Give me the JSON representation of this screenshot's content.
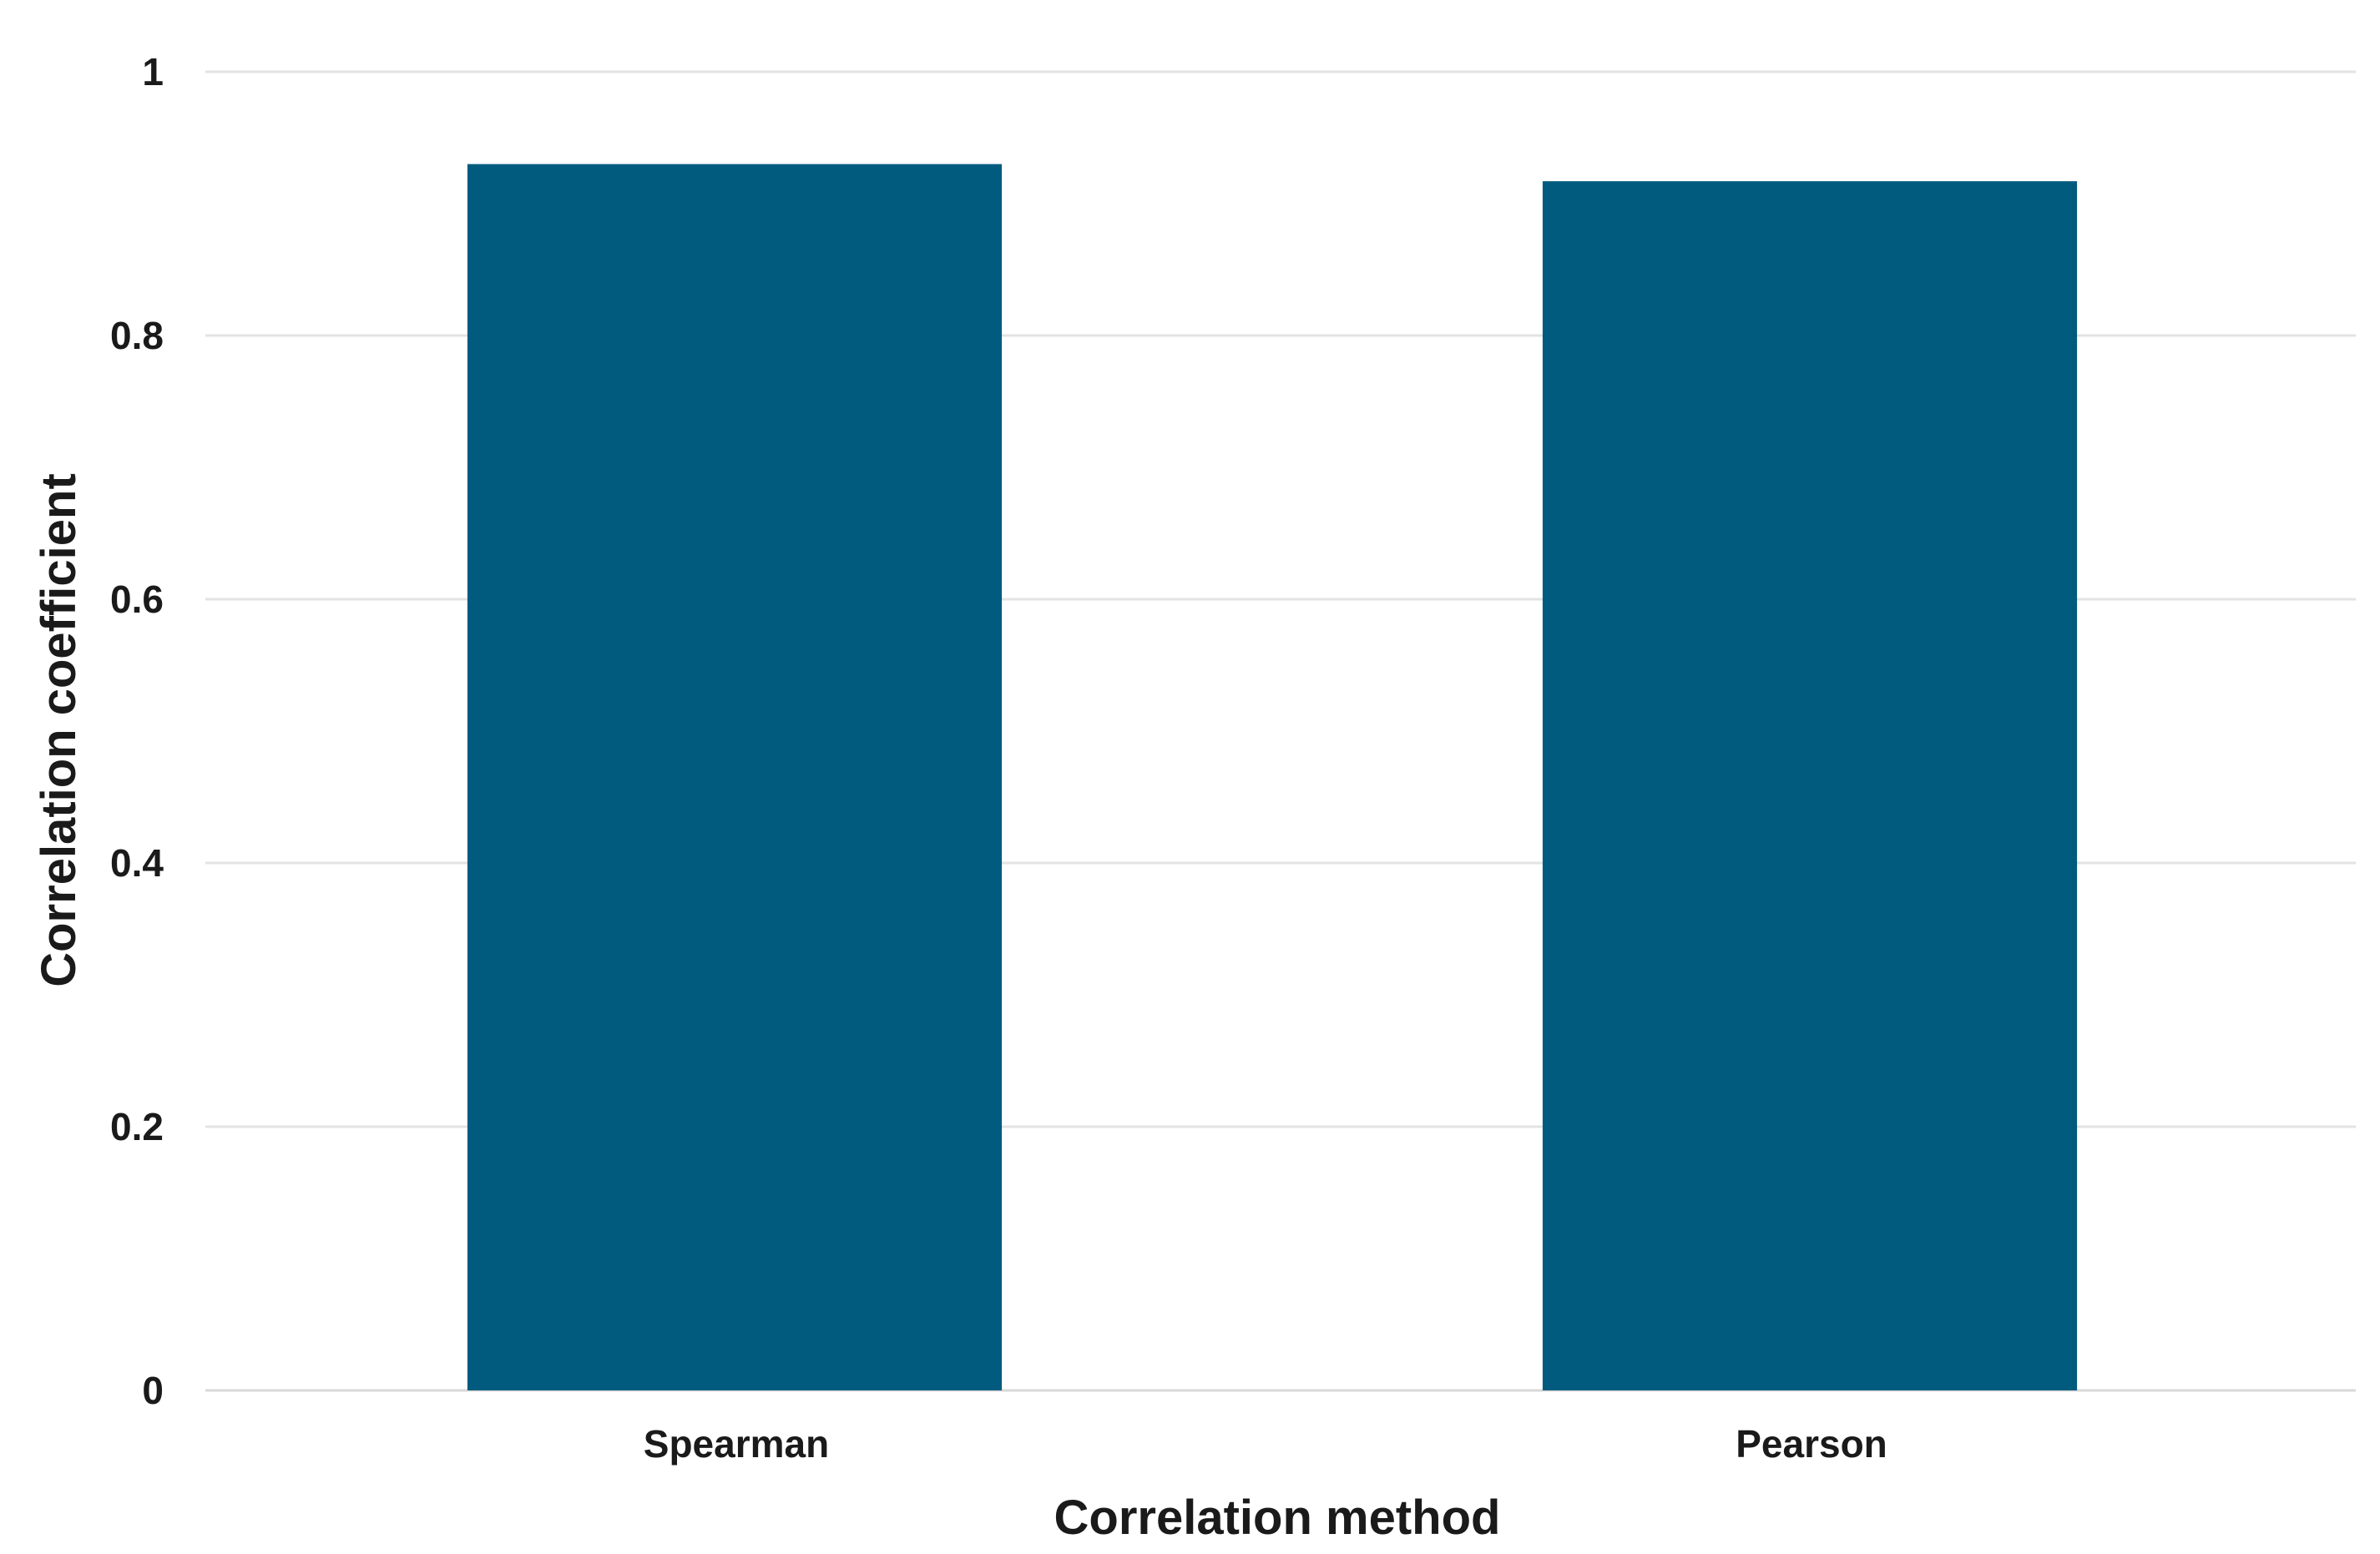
{
  "chart_data": {
    "type": "bar",
    "title": "",
    "xlabel": "Correlation method",
    "ylabel": "Correlation coefficient",
    "categories": [
      "Spearman",
      "Pearson"
    ],
    "values": [
      0.93,
      0.917
    ],
    "ylim": [
      0,
      1
    ],
    "yticks": [
      0,
      0.2,
      0.4,
      0.6,
      0.8,
      1
    ],
    "ytick_labels": [
      "0",
      "0.2",
      "0.4",
      "0.6",
      "0.8",
      "1"
    ],
    "grid": true,
    "legend": "none",
    "colors": {
      "bar": "#005b7f",
      "grid": "#e3e3e3",
      "text": "#1a1a1a"
    }
  }
}
